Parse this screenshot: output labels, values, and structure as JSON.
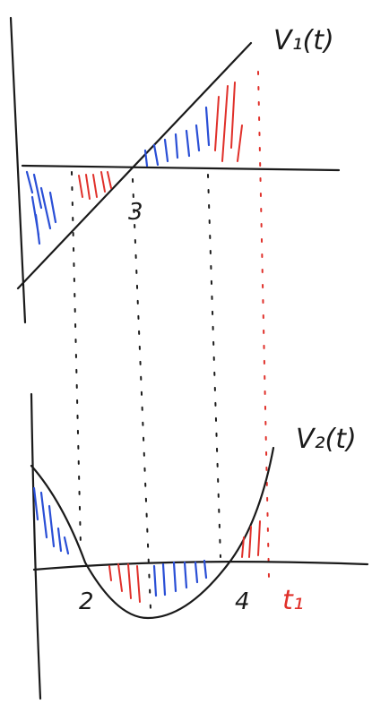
{
  "top_graph": {
    "label": "V₁(t)",
    "x_mark": "3"
  },
  "bottom_graph": {
    "label": "V₂(t)",
    "x_marks": [
      "2",
      "4"
    ],
    "t_label": "t₁"
  }
}
